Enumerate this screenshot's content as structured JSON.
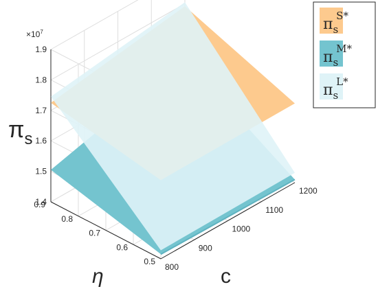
{
  "chart_data": {
    "type": "surface",
    "xlabel": "c",
    "ylabel": "η",
    "zlabel": "π_s",
    "zexponent": "×10",
    "zexponent_power": "7",
    "xlim": [
      800,
      1200
    ],
    "ylim": [
      0.5,
      0.9
    ],
    "zlim": [
      1.4,
      1.9
    ],
    "xticks": [
      "800",
      "900",
      "1000",
      "1100",
      "1200"
    ],
    "yticks": [
      "0.5",
      "0.6",
      "0.7",
      "0.8",
      "0.9"
    ],
    "zticks": [
      "1.4",
      "1.5",
      "1.6",
      "1.7",
      "1.8",
      "1.9"
    ],
    "grid": true,
    "legend_position": "top-right",
    "series": [
      {
        "name": "π_s^{S*}",
        "legend_base": "π",
        "legend_sub": "s",
        "legend_sup": "S*",
        "color": "#fdca8e",
        "corners": {
          "c800_eta05": 1.658,
          "c1200_eta05": 1.66,
          "c800_eta09": 1.725,
          "c1200_eta09": 1.792
        }
      },
      {
        "name": "π_s^{M*}",
        "legend_base": "π",
        "legend_sub": "s",
        "legend_sup": "M*",
        "color": "#74c4cf",
        "corners": {
          "c800_eta05": 1.415,
          "c1200_eta05": 1.41,
          "c800_eta09": 1.505,
          "c1200_eta09": 1.62
        }
      },
      {
        "name": "π_s^{L*}",
        "legend_base": "π",
        "legend_sub": "s",
        "legend_sup": "L*",
        "color": "#dff3f7",
        "corners": {
          "c800_eta05": 1.428,
          "c1200_eta05": 1.432,
          "c800_eta09": 1.745,
          "c1200_eta09": 1.805
        }
      }
    ]
  }
}
